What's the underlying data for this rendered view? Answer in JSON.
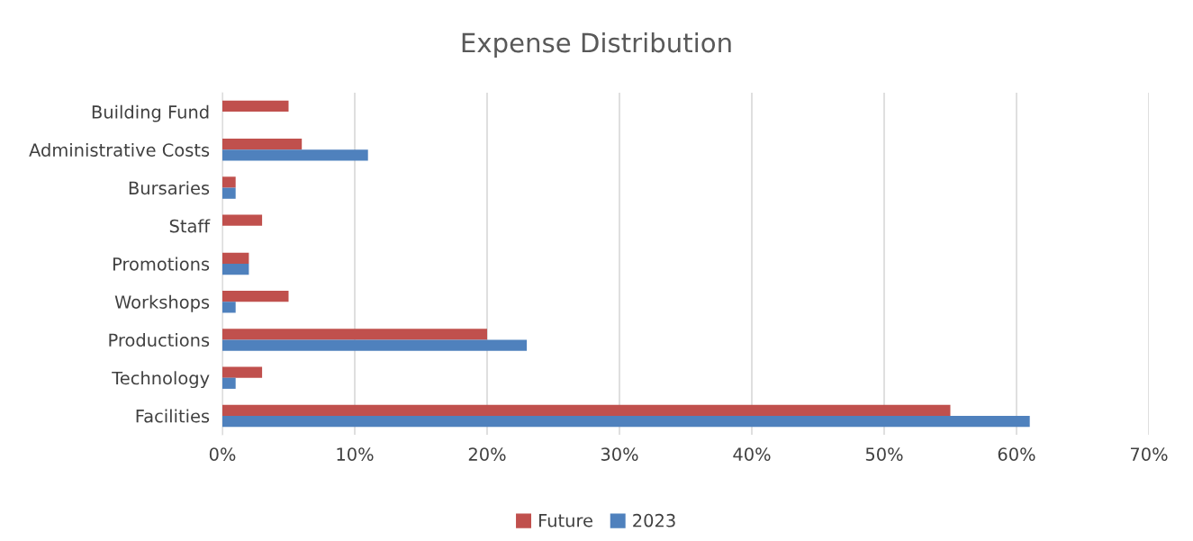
{
  "chart_data": {
    "type": "bar",
    "orientation": "horizontal",
    "title": "Expense Distribution",
    "categories": [
      "Building Fund",
      "Administrative Costs",
      "Bursaries",
      "Staff",
      "Promotions",
      "Workshops",
      "Productions",
      "Technology",
      "Facilities"
    ],
    "series": [
      {
        "name": "Future",
        "color": "#c0504d",
        "values": [
          5,
          6,
          1,
          3,
          2,
          5,
          20,
          3,
          55
        ]
      },
      {
        "name": "2023",
        "color": "#4f81bd",
        "values": [
          0,
          11,
          1,
          0,
          2,
          1,
          23,
          1,
          61
        ]
      }
    ],
    "xlim": [
      0,
      70
    ],
    "xticks": [
      {
        "value": 0,
        "label": "0%"
      },
      {
        "value": 10,
        "label": "10%"
      },
      {
        "value": 20,
        "label": "20%"
      },
      {
        "value": 30,
        "label": "30%"
      },
      {
        "value": 40,
        "label": "40%"
      },
      {
        "value": 50,
        "label": "50%"
      },
      {
        "value": 60,
        "label": "60%"
      },
      {
        "value": 70,
        "label": "70%"
      }
    ],
    "grid": "x",
    "legend": "bottom"
  }
}
